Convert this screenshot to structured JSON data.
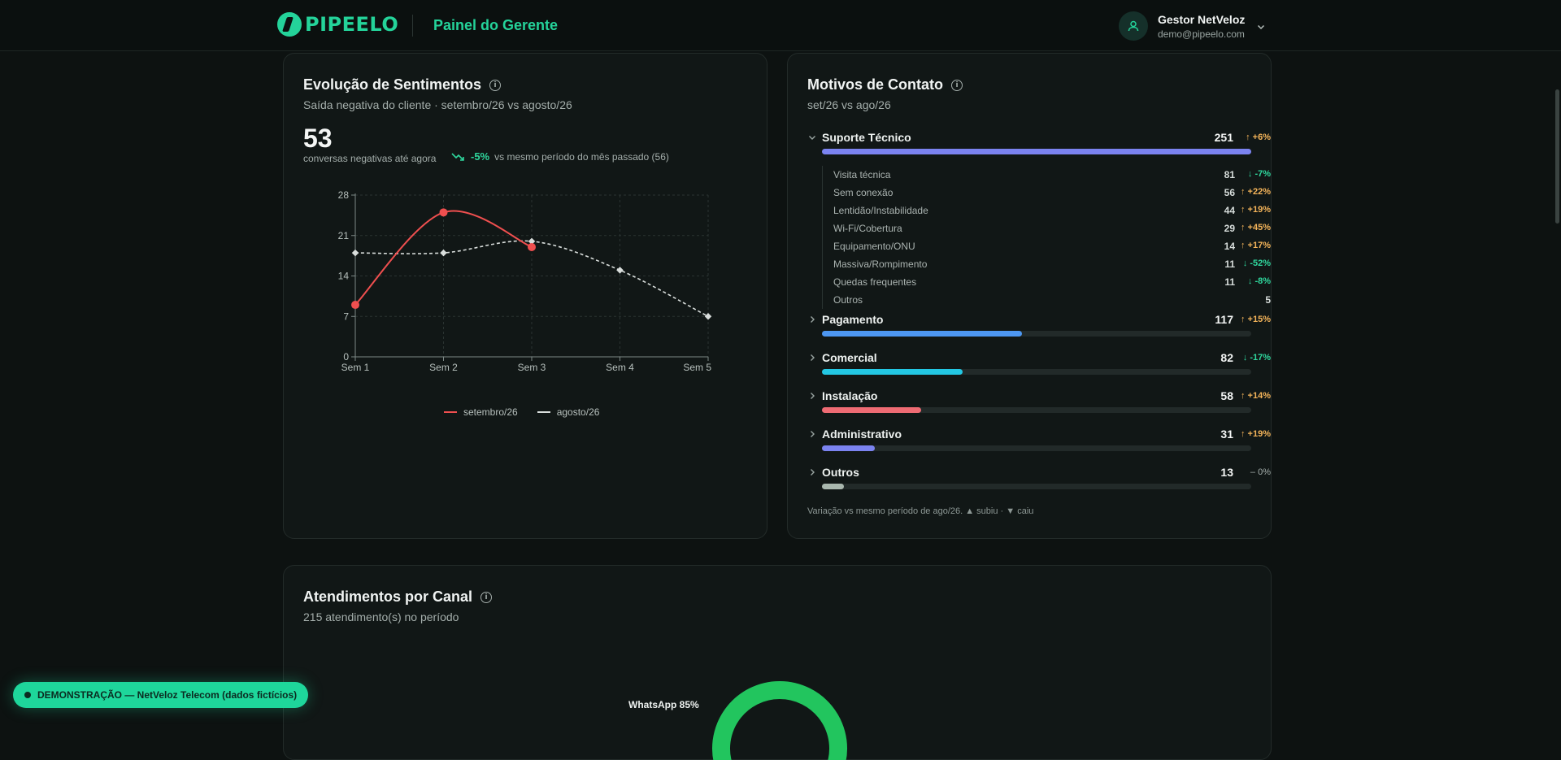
{
  "header": {
    "brand": "PIPEELO",
    "title": "Painel do Gerente",
    "user_name": "Gestor NetVeloz",
    "user_email": "demo@pipeelo.com"
  },
  "sentiment": {
    "title": "Evolução de Sentimentos",
    "subtitle": "Saída negativa do cliente · setembro/26 vs agosto/26",
    "value": "53",
    "caption": "conversas negativas até agora",
    "delta": "-5%",
    "delta_note": "vs mesmo período do mês passado (56)",
    "legend": [
      "setembro/26",
      "agosto/26"
    ]
  },
  "chart_data": {
    "type": "line",
    "categories": [
      "Sem 1",
      "Sem 2",
      "Sem 3",
      "Sem 4",
      "Sem 5"
    ],
    "ylim": [
      0,
      28
    ],
    "yticks": [
      "0",
      "7",
      "14",
      "21",
      "28"
    ],
    "grid": true,
    "legend_position": "bottom",
    "series": [
      {
        "name": "setembro/26",
        "values": [
          9,
          25,
          19,
          null,
          null
        ],
        "color": "#ef4f4f",
        "style": "solid"
      },
      {
        "name": "agosto/26",
        "values": [
          18,
          18,
          20,
          15,
          7
        ],
        "color": "#d9dedc",
        "style": "dashed"
      }
    ]
  },
  "reasons": {
    "title": "Motivos de Contato",
    "subtitle": "set/26 vs ago/26",
    "categories": [
      {
        "label": "Suporte Técnico",
        "count": "251",
        "delta": "+6%",
        "dir": "up",
        "arrow": "↑",
        "fraction": 1.0,
        "color": "#7b83f0",
        "expanded": true
      },
      {
        "label": "Pagamento",
        "count": "117",
        "delta": "+15%",
        "dir": "up",
        "arrow": "↑",
        "fraction": 0.466,
        "color": "#4d97f2",
        "expanded": false
      },
      {
        "label": "Comercial",
        "count": "82",
        "delta": "-17%",
        "dir": "down",
        "arrow": "↓",
        "fraction": 0.327,
        "color": "#23c7e3",
        "expanded": false
      },
      {
        "label": "Instalação",
        "count": "58",
        "delta": "+14%",
        "dir": "up",
        "arrow": "↑",
        "fraction": 0.231,
        "color": "#ee6b73",
        "expanded": false
      },
      {
        "label": "Administrativo",
        "count": "31",
        "delta": "+19%",
        "dir": "up",
        "arrow": "↑",
        "fraction": 0.124,
        "color": "#7b83f0",
        "expanded": false
      },
      {
        "label": "Outros",
        "count": "13",
        "delta": "0%",
        "dir": "flat",
        "arrow": "–",
        "fraction": 0.052,
        "color": "#a9b7ae",
        "expanded": false
      }
    ],
    "subitems": [
      {
        "label": "Visita técnica",
        "count": "81",
        "delta": "-7%",
        "dir": "down",
        "arrow": "↓"
      },
      {
        "label": "Sem conexão",
        "count": "56",
        "delta": "+22%",
        "dir": "up",
        "arrow": "↑"
      },
      {
        "label": "Lentidão/Instabilidade",
        "count": "44",
        "delta": "+19%",
        "dir": "up",
        "arrow": "↑"
      },
      {
        "label": "Wi-Fi/Cobertura",
        "count": "29",
        "delta": "+45%",
        "dir": "up",
        "arrow": "↑"
      },
      {
        "label": "Equipamento/ONU",
        "count": "14",
        "delta": "+17%",
        "dir": "up",
        "arrow": "↑"
      },
      {
        "label": "Massiva/Rompimento",
        "count": "11",
        "delta": "-52%",
        "dir": "down",
        "arrow": "↓"
      },
      {
        "label": "Quedas frequentes",
        "count": "11",
        "delta": "-8%",
        "dir": "down",
        "arrow": "↓"
      },
      {
        "label": "Outros",
        "count": "5",
        "delta": "",
        "dir": "flat",
        "arrow": ""
      }
    ],
    "footnote": "Variação vs mesmo período de ago/26. ▲ subiu · ▼ caiu"
  },
  "channels": {
    "title": "Atendimentos por Canal",
    "subtitle": "215 atendimento(s) no período",
    "donut_label": "WhatsApp 85%",
    "whatsapp_share": 0.85,
    "color": "#22c55e"
  },
  "demo_badge": "DEMONSTRAÇÃO — NetVeloz Telecom (dados fictícios)"
}
